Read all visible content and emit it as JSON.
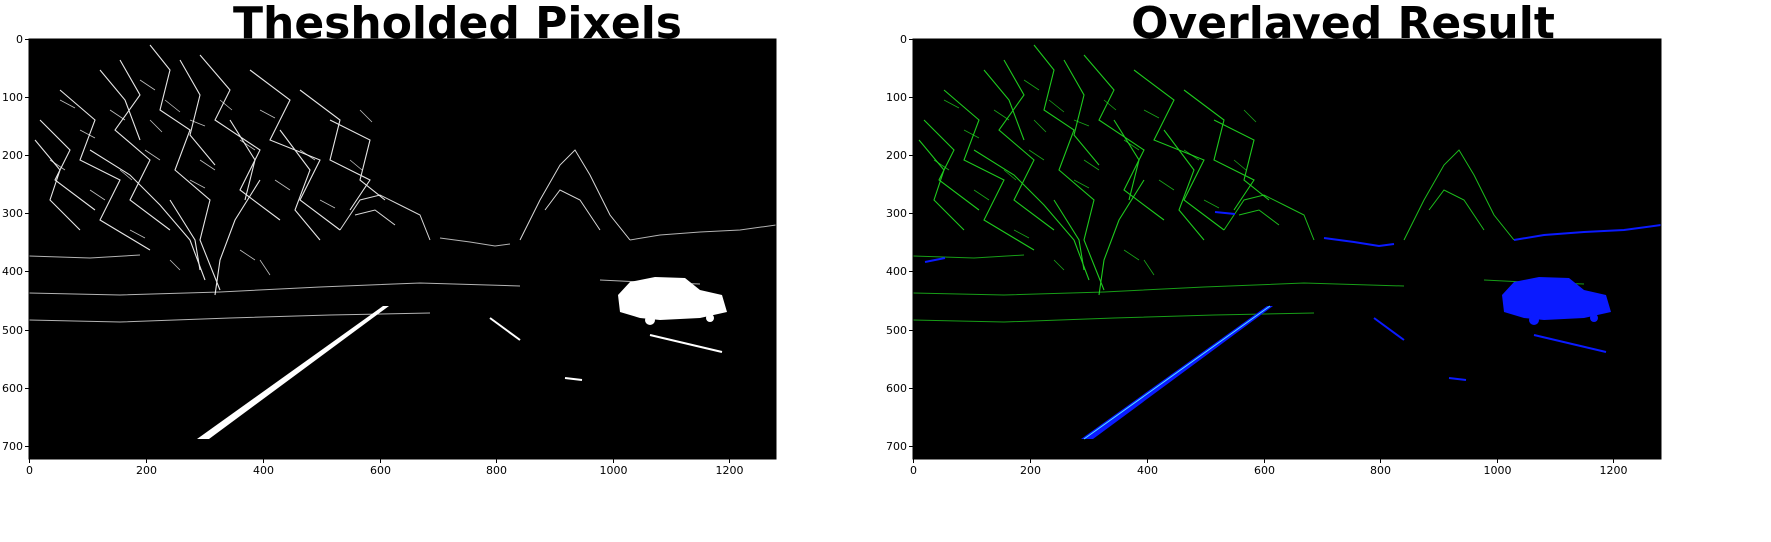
{
  "panels": [
    {
      "title": "Thesholded Pixels",
      "x_ticks": [
        "0",
        "200",
        "400",
        "600",
        "800",
        "1000",
        "1200"
      ],
      "y_ticks": [
        "0",
        "100",
        "200",
        "300",
        "400",
        "500",
        "600",
        "700"
      ]
    },
    {
      "title": "Overlayed Result",
      "x_ticks": [
        "0",
        "200",
        "400",
        "600",
        "800",
        "1000",
        "1200"
      ],
      "y_ticks": [
        "0",
        "100",
        "200",
        "300",
        "400",
        "500",
        "600",
        "700"
      ]
    }
  ],
  "colors": {
    "background": "#000000",
    "thresholded_pixel": "#ffffff",
    "overlay_green": "#22e022",
    "overlay_blue": "#0a1aff"
  }
}
